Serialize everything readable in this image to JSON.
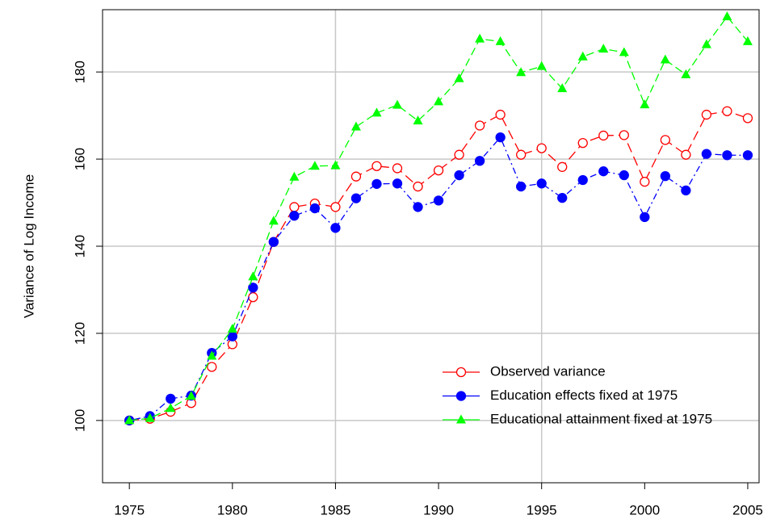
{
  "chart_data": {
    "type": "line",
    "y_label": "Variance of Log Income",
    "x": [
      1975,
      1976,
      1977,
      1978,
      1979,
      1980,
      1981,
      1982,
      1983,
      1984,
      1985,
      1986,
      1987,
      1988,
      1989,
      1990,
      1991,
      1992,
      1993,
      1994,
      1995,
      1996,
      1997,
      1998,
      1999,
      2000,
      2001,
      2002,
      2003,
      2004,
      2005
    ],
    "series": [
      {
        "name": "Observed variance",
        "color": "#ff0000",
        "marker": "open-circle",
        "dash": "12 6",
        "values": [
          100,
          100.4,
          102,
          104,
          112.3,
          117.5,
          128.3,
          141,
          149,
          149.8,
          149,
          156,
          158.4,
          157.9,
          153.7,
          157.4,
          161,
          167.7,
          170.2,
          161,
          162.5,
          158.2,
          163.7,
          165.4,
          165.5,
          154.8,
          164.4,
          161,
          170.2,
          171,
          169.4
        ]
      },
      {
        "name": "Education effects fixed at 1975",
        "color": "#0000ff",
        "marker": "filled-circle",
        "dash": "2 4 8 4",
        "values": [
          100,
          101,
          105,
          105.7,
          115.5,
          119.3,
          130.5,
          141,
          147,
          148.7,
          144.2,
          151,
          154.3,
          154.4,
          149,
          150.5,
          156.3,
          159.6,
          165,
          153.7,
          154.4,
          151.1,
          155.2,
          157.2,
          156.3,
          146.7,
          156.1,
          152.8,
          161.2,
          160.9,
          160.9
        ]
      },
      {
        "name": "Educational attainment fixed at 1975",
        "color": "#00ff00",
        "marker": "filled-triangle",
        "dash": "10 5",
        "values": [
          100,
          100.5,
          102.8,
          105.6,
          114.8,
          121,
          133,
          145.8,
          155.9,
          158.4,
          158.5,
          167.4,
          170.6,
          172.4,
          168.8,
          173.2,
          178.5,
          187.6,
          187,
          179.9,
          181.3,
          176.2,
          183.5,
          185.3,
          184.5,
          172.5,
          182.8,
          179.4,
          186.3,
          192.7,
          187
        ]
      }
    ],
    "xlim": [
      1973.7,
      2005.55
    ],
    "ylim": [
      85.7,
      194.3
    ],
    "xticks": [
      1975,
      1980,
      1985,
      1990,
      1995,
      2000,
      2005
    ],
    "yticks": [
      100,
      120,
      140,
      160,
      180
    ],
    "xgrid": [
      1985,
      1995
    ],
    "grid": true,
    "legend": "bottom-right"
  }
}
